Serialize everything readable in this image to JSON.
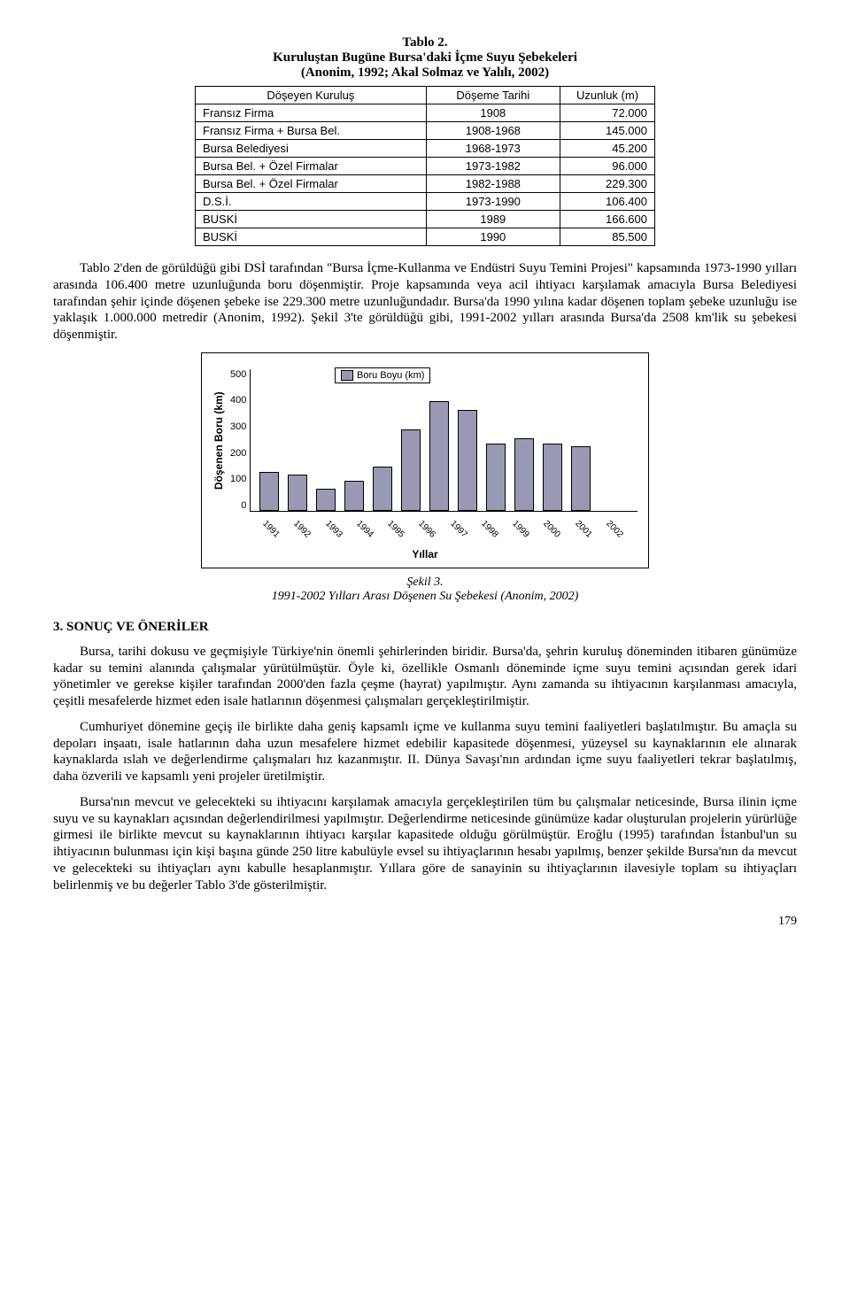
{
  "table2": {
    "title": "Tablo 2.",
    "subtitle": "Kuruluştan Bugüne Bursa'daki İçme Suyu Şebekeleri",
    "source": "(Anonim, 1992; Akal Solmaz ve Yalılı, 2002)",
    "headers": [
      "Döşeyen Kuruluş",
      "Döşeme Tarihi",
      "Uzunluk (m)"
    ],
    "rows": [
      [
        "Fransız Firma",
        "1908",
        "72.000"
      ],
      [
        "Fransız Firma + Bursa Bel.",
        "1908-1968",
        "145.000"
      ],
      [
        "Bursa Belediyesi",
        "1968-1973",
        "45.200"
      ],
      [
        "Bursa Bel. + Özel Firmalar",
        "1973-1982",
        "96.000"
      ],
      [
        "Bursa Bel. + Özel Firmalar",
        "1982-1988",
        "229.300"
      ],
      [
        "D.S.İ.",
        "1973-1990",
        "106.400"
      ],
      [
        "BUSKİ",
        "1989",
        "166.600"
      ],
      [
        "BUSKİ",
        "1990",
        "85.500"
      ]
    ]
  },
  "para1": "Tablo 2'den de görüldüğü gibi DSİ tarafından \"Bursa İçme-Kullanma ve Endüstri Suyu Temini Projesi\" kapsamında 1973-1990 yılları arasında 106.400 metre uzunluğunda boru döşenmiştir. Proje kapsamında veya acil ihtiyacı karşılamak amacıyla Bursa Belediyesi tarafından şehir içinde döşenen şebeke ise 229.300 metre uzunluğundadır. Bursa'da 1990 yılına kadar döşenen toplam şebeke uzunluğu ise yaklaşık 1.000.000 metredir (Anonim, 1992). Şekil 3'te görüldüğü gibi, 1991-2002 yılları arasında Bursa'da 2508 km'lik su şebekesi döşenmiştir.",
  "chart": {
    "type": "bar",
    "ylim": [
      0,
      500
    ],
    "ytick_step": 100,
    "yticks": [
      "500",
      "400",
      "300",
      "200",
      "100",
      "0"
    ],
    "ylabel": "Döşenen Boru (km)",
    "legend": "Boru Boyu (km)",
    "xlabel": "Yıllar",
    "years": [
      "1991",
      "1992",
      "1993",
      "1994",
      "1995",
      "1996",
      "1997",
      "1998",
      "1999",
      "2000",
      "2001",
      "2002"
    ],
    "values": [
      130,
      120,
      70,
      100,
      150,
      280,
      380,
      350,
      230,
      250,
      230,
      220
    ],
    "bar_color": "#9999b3",
    "border_color": "#000000",
    "background_color": "#ffffff"
  },
  "caption": {
    "line1": "Şekil 3.",
    "line2": "1991-2002 Yılları Arası Döşenen Su Şebekesi (Anonim, 2002)"
  },
  "section": "3. SONUÇ VE ÖNERİLER",
  "para2": "Bursa, tarihi dokusu ve geçmişiyle Türkiye'nin önemli şehirlerinden biridir. Bursa'da, şehrin kuruluş döneminden itibaren günümüze kadar su temini alanında çalışmalar yürütülmüştür. Öyle ki, özellikle Osmanlı döneminde içme suyu temini açısından gerek idari yönetimler ve gerekse kişiler tarafından 2000'den fazla çeşme (hayrat) yapılmıştır. Aynı zamanda su ihtiyacının karşılanması amacıyla, çeşitli mesafelerde hizmet eden isale hatlarının döşenmesi çalışmaları gerçekleştirilmiştir.",
  "para3": "Cumhuriyet dönemine geçiş ile birlikte daha geniş kapsamlı içme ve kullanma suyu temini faaliyetleri başlatılmıştır. Bu amaçla su depoları inşaatı, isale hatlarının daha uzun mesafelere hizmet edebilir kapasitede döşenmesi, yüzeysel su kaynaklarının ele alınarak kaynaklarda ıslah ve değerlendirme çalışmaları hız kazanmıştır. II. Dünya Savaşı'nın ardından içme suyu faaliyetleri tekrar başlatılmış, daha özverili ve kapsamlı yeni projeler üretilmiştir.",
  "para4": "Bursa'nın mevcut ve gelecekteki su ihtiyacını karşılamak amacıyla gerçekleştirilen tüm bu çalışmalar neticesinde, Bursa ilinin içme suyu ve su kaynakları açısından değerlendirilmesi yapılmıştır. Değerlendirme neticesinde günümüze kadar oluşturulan projelerin yürürlüğe girmesi ile birlikte mevcut su kaynaklarının ihtiyacı karşılar kapasitede olduğu görülmüştür. Eroğlu (1995) tarafından İstanbul'un su ihtiyacının bulunması için kişi başına günde 250 litre kabulüyle evsel su ihtiyaçlarının hesabı yapılmış, benzer şekilde Bursa'nın da mevcut ve gelecekteki su ihtiyaçları aynı kabulle hesaplanmıştır. Yıllara göre de sanayinin su ihtiyaçlarının ilavesiyle toplam su ihtiyaçları belirlenmiş ve bu değerler Tablo 3'de gösterilmiştir.",
  "page": "179"
}
